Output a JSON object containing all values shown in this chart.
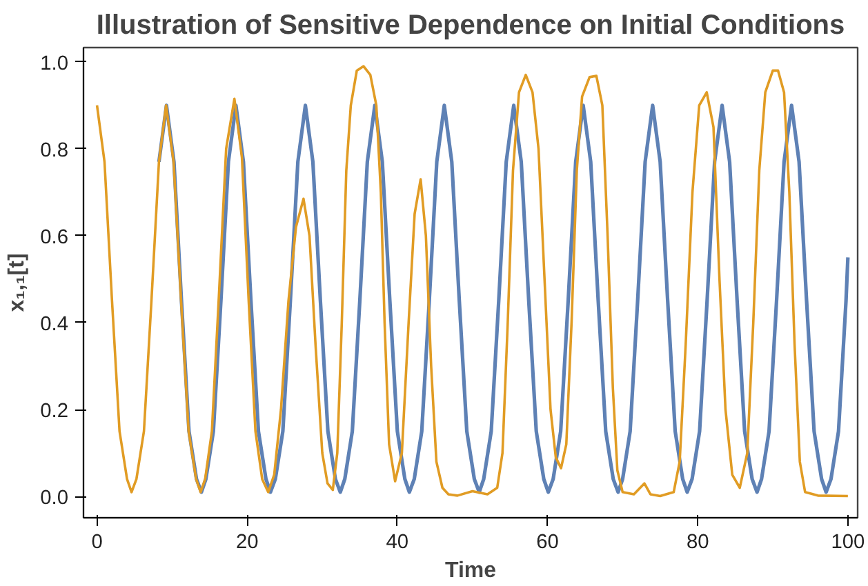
{
  "chart_data": {
    "type": "line",
    "title": "Illustration of Sensitive Dependence on Initial Conditions",
    "xlabel": "Time",
    "ylabel": "x₁,₁[t]",
    "xlim": [
      -1.8,
      101.3
    ],
    "ylim": [
      -0.049,
      1.033
    ],
    "xticks": [
      0,
      20,
      40,
      60,
      80,
      100
    ],
    "yticks": [
      {
        "value": 0,
        "label": "0.0"
      },
      {
        "value": 0.2,
        "label": "0.2"
      },
      {
        "value": 0.4,
        "label": "0.4"
      },
      {
        "value": 0.6,
        "label": "0.6"
      },
      {
        "value": 0.8,
        "label": "0.8"
      },
      {
        "value": 1.0,
        "label": "1.0"
      }
    ],
    "grid": false,
    "marker": "none",
    "line_style": "solid",
    "series": [
      {
        "color": "#5e81b5",
        "x": [
          8.25,
          9.25,
          10.25,
          11.25,
          12.25,
          13.25,
          13.9,
          14.5,
          15.5,
          16.5,
          17.5,
          18.5,
          19.5,
          20.5,
          21.5,
          22.5,
          23.1,
          23.75,
          24.75,
          25.75,
          26.75,
          27.75,
          28.75,
          29.75,
          30.75,
          31.75,
          32.4,
          33,
          34,
          35,
          36,
          37,
          38,
          39,
          40,
          41,
          41.6,
          42.25,
          43.25,
          44.25,
          45.25,
          46.25,
          47.25,
          48.25,
          49.25,
          50.25,
          50.9,
          51.5,
          52.5,
          53.5,
          54.5,
          55.5,
          56.5,
          57.5,
          58.5,
          59.5,
          60.1,
          60.75,
          61.75,
          62.75,
          63.75,
          64.75,
          65.75,
          66.75,
          67.75,
          68.75,
          69.4,
          70,
          71,
          72,
          73,
          74,
          75,
          76,
          77,
          78,
          78.6,
          79.25,
          80.25,
          81.25,
          82.25,
          83.25,
          84.25,
          85.25,
          86.25,
          87.25,
          87.9,
          88.5,
          89.5,
          90.5,
          91.5,
          92.5,
          93.5,
          94.5,
          95.5,
          96.5,
          97.1,
          97.75,
          98.75,
          99.75,
          100
        ],
        "values": [
          0.77,
          0.9,
          0.77,
          0.45,
          0.15,
          0.04,
          0.01,
          0.04,
          0.15,
          0.45,
          0.77,
          0.9,
          0.77,
          0.45,
          0.15,
          0.04,
          0.01,
          0.04,
          0.15,
          0.45,
          0.77,
          0.9,
          0.77,
          0.45,
          0.15,
          0.04,
          0.01,
          0.04,
          0.15,
          0.45,
          0.77,
          0.9,
          0.77,
          0.45,
          0.15,
          0.04,
          0.01,
          0.04,
          0.15,
          0.45,
          0.77,
          0.9,
          0.77,
          0.45,
          0.15,
          0.04,
          0.01,
          0.04,
          0.15,
          0.45,
          0.77,
          0.9,
          0.77,
          0.45,
          0.15,
          0.04,
          0.01,
          0.04,
          0.15,
          0.45,
          0.77,
          0.9,
          0.77,
          0.45,
          0.15,
          0.04,
          0.01,
          0.04,
          0.15,
          0.45,
          0.77,
          0.9,
          0.77,
          0.45,
          0.15,
          0.04,
          0.01,
          0.04,
          0.15,
          0.45,
          0.77,
          0.9,
          0.77,
          0.45,
          0.15,
          0.04,
          0.01,
          0.04,
          0.15,
          0.45,
          0.77,
          0.9,
          0.77,
          0.45,
          0.15,
          0.04,
          0.01,
          0.04,
          0.15,
          0.45,
          0.55
        ]
      },
      {
        "color": "#e19c24",
        "x": [
          0,
          1,
          2,
          3,
          4,
          4.6,
          5.25,
          6.25,
          7.25,
          8.25,
          9.2,
          10.2,
          11.2,
          12.2,
          13.2,
          13.8,
          14.4,
          15.3,
          16.2,
          17.2,
          18.3,
          19.3,
          20.2,
          21.1,
          22,
          22.8,
          23.6,
          24.5,
          25.5,
          26.5,
          27.5,
          28.3,
          29.1,
          30,
          30.7,
          31.4,
          32,
          32.6,
          33.2,
          33.8,
          34.6,
          35.5,
          36.4,
          37.2,
          37.8,
          38.3,
          38.9,
          39.7,
          40.6,
          41.5,
          42.3,
          43.1,
          43.8,
          44.5,
          45.2,
          46,
          46.8,
          48,
          50,
          52,
          53.3,
          54,
          54.7,
          55.4,
          56.2,
          57.1,
          58,
          58.8,
          59.6,
          60.4,
          61.1,
          61.8,
          62.5,
          63.2,
          63.9,
          64.6,
          65.6,
          66.5,
          67.3,
          68,
          68.7,
          69.3,
          70,
          71.5,
          72.9,
          73.7,
          75,
          76.8,
          77.6,
          78.4,
          79.3,
          80.2,
          81.2,
          82.1,
          82.9,
          83.7,
          84.6,
          85.6,
          86.6,
          87.4,
          88.2,
          89,
          90,
          90.7,
          91.5,
          92.2,
          92.9,
          93.6,
          94.3,
          96,
          100
        ],
        "values": [
          0.9,
          0.77,
          0.45,
          0.15,
          0.04,
          0.01,
          0.04,
          0.15,
          0.45,
          0.77,
          0.9,
          0.77,
          0.45,
          0.15,
          0.04,
          0.01,
          0.04,
          0.15,
          0.45,
          0.8,
          0.915,
          0.78,
          0.45,
          0.15,
          0.04,
          0.01,
          0.05,
          0.2,
          0.45,
          0.62,
          0.685,
          0.6,
          0.35,
          0.1,
          0.03,
          0.015,
          0.1,
          0.4,
          0.75,
          0.9,
          0.98,
          0.99,
          0.97,
          0.9,
          0.7,
          0.4,
          0.12,
          0.035,
          0.1,
          0.4,
          0.65,
          0.73,
          0.6,
          0.3,
          0.08,
          0.02,
          0.005,
          0.002,
          0.012,
          0.005,
          0.02,
          0.1,
          0.4,
          0.75,
          0.93,
          0.97,
          0.93,
          0.8,
          0.5,
          0.2,
          0.09,
          0.065,
          0.12,
          0.4,
          0.75,
          0.92,
          0.965,
          0.968,
          0.9,
          0.6,
          0.25,
          0.06,
          0.01,
          0.005,
          0.03,
          0.005,
          0.001,
          0.01,
          0.08,
          0.35,
          0.7,
          0.9,
          0.93,
          0.85,
          0.5,
          0.2,
          0.05,
          0.02,
          0.1,
          0.4,
          0.75,
          0.93,
          0.98,
          0.98,
          0.93,
          0.7,
          0.35,
          0.08,
          0.01,
          0.002,
          0.001
        ]
      }
    ]
  }
}
